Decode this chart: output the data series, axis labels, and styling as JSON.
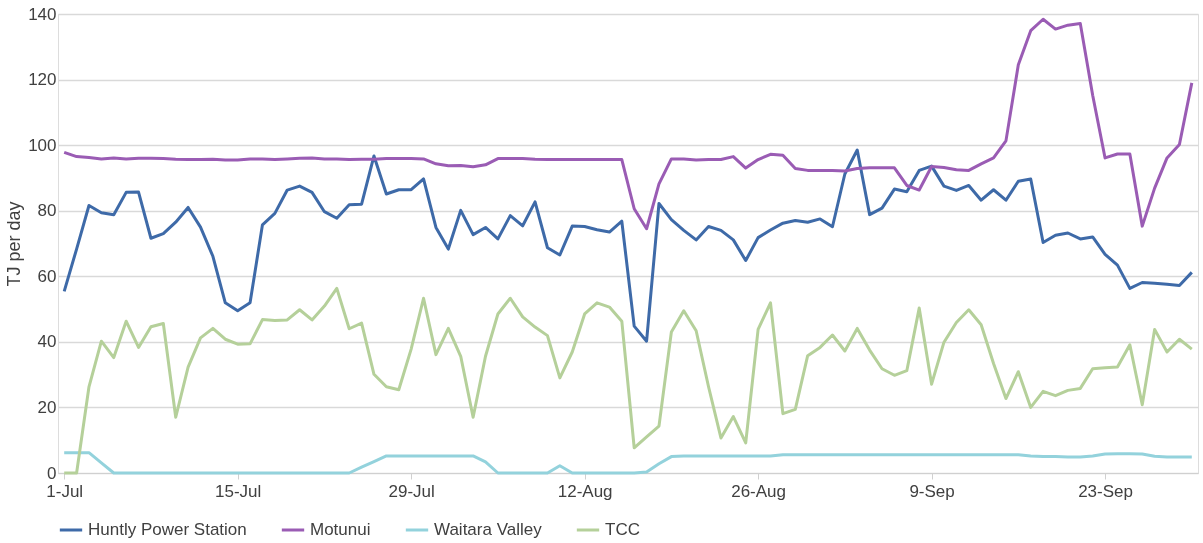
{
  "chart_data": {
    "type": "line",
    "ylabel": "TJ per day",
    "categories": [
      "1-Jul",
      null,
      null,
      null,
      null,
      null,
      null,
      null,
      null,
      null,
      null,
      null,
      null,
      null,
      "15-Jul",
      null,
      null,
      null,
      null,
      null,
      null,
      null,
      null,
      null,
      null,
      null,
      null,
      null,
      "29-Jul",
      null,
      null,
      null,
      null,
      null,
      null,
      null,
      null,
      null,
      null,
      null,
      null,
      null,
      "12-Aug",
      null,
      null,
      null,
      null,
      null,
      null,
      null,
      null,
      null,
      null,
      null,
      null,
      null,
      "26-Aug",
      null,
      null,
      null,
      null,
      null,
      null,
      null,
      null,
      null,
      null,
      null,
      null,
      null,
      "9-Sep",
      null,
      null,
      null,
      null,
      null,
      null,
      null,
      null,
      null,
      null,
      null,
      null,
      null,
      "23-Sep",
      null,
      null,
      null,
      null,
      null,
      null,
      null
    ],
    "series": [
      {
        "name": "Huntly Power Station",
        "color": "#3e6aa8",
        "values": [
          55.4,
          68.3,
          81.6,
          79.4,
          78.8,
          85.6,
          85.7,
          71.6,
          73,
          76.5,
          81,
          75,
          66.1,
          51.9,
          49.5,
          51.9,
          75.7,
          79.2,
          86.3,
          87.5,
          85.6,
          79.7,
          77.7,
          81.8,
          82,
          96.7,
          85.1,
          86.4,
          86.4,
          89.7,
          74.9,
          68.3,
          80.1,
          72.7,
          74.9,
          71.4,
          78.5,
          75.4,
          82.7,
          68.7,
          66.5,
          75.3,
          75.2,
          74.2,
          73.5,
          76.8,
          44.8,
          40.2,
          82.2,
          77.3,
          74,
          71.1,
          75.2,
          74,
          71.1,
          64.8,
          71.8,
          74.1,
          76.2,
          77,
          76.5,
          77.5,
          75.1,
          91.2,
          98.5,
          78.8,
          80.8,
          86.6,
          85.8,
          92.3,
          93.6,
          87.5,
          86.2,
          87.7,
          83.2,
          86.4,
          83.2,
          89,
          89.7,
          70.3,
          72.5,
          73.2,
          71.4,
          72,
          66.7,
          63.4,
          56.3,
          58.1,
          57.9,
          57.6,
          57.2,
          61.2
        ]
      },
      {
        "name": "Motunui",
        "color": "#9a5cb4",
        "values": [
          97.8,
          96.5,
          96.2,
          95.8,
          96.1,
          95.8,
          96,
          96,
          95.9,
          95.7,
          95.6,
          95.6,
          95.7,
          95.5,
          95.5,
          95.8,
          95.8,
          95.6,
          95.8,
          96,
          96.1,
          95.8,
          95.8,
          95.6,
          95.7,
          95.7,
          95.9,
          95.9,
          95.9,
          95.8,
          94.3,
          93.7,
          93.8,
          93.4,
          94,
          95.9,
          95.9,
          95.9,
          95.7,
          95.6,
          95.6,
          95.6,
          95.6,
          95.6,
          95.6,
          95.6,
          80.6,
          74.5,
          88.2,
          95.8,
          95.8,
          95.5,
          95.6,
          95.6,
          96.5,
          93,
          95.6,
          97.2,
          96.9,
          92.9,
          92.3,
          92.3,
          92.3,
          92.1,
          92.9,
          93.1,
          93.1,
          93.1,
          87.7,
          86.3,
          93.5,
          93.2,
          92.5,
          92.3,
          94.3,
          96.1,
          101.3,
          124.5,
          134.9,
          138.4,
          135.4,
          136.6,
          137.1,
          115.2,
          96.1,
          97.3,
          97.3,
          75.3,
          86.9,
          96.1,
          100.2,
          119
        ]
      },
      {
        "name": "Waitara Valley",
        "color": "#93d2dc",
        "values": [
          6.2,
          6.2,
          6.2,
          3.1,
          0,
          0,
          0,
          0,
          0,
          0,
          0,
          0,
          0,
          0,
          0,
          0,
          0,
          0,
          0,
          0,
          0,
          0,
          0,
          0,
          1.8,
          3.5,
          5.2,
          5.2,
          5.2,
          5.2,
          5.2,
          5.2,
          5.2,
          5.2,
          3.4,
          0,
          0,
          0,
          0,
          0,
          2.2,
          0,
          0,
          0,
          0,
          0,
          0,
          0.3,
          2.8,
          5,
          5.2,
          5.2,
          5.2,
          5.2,
          5.2,
          5.2,
          5.2,
          5.2,
          5.6,
          5.6,
          5.6,
          5.6,
          5.6,
          5.6,
          5.6,
          5.6,
          5.6,
          5.6,
          5.6,
          5.6,
          5.6,
          5.6,
          5.6,
          5.6,
          5.6,
          5.6,
          5.6,
          5.6,
          5.2,
          5,
          5,
          4.9,
          4.9,
          5.2,
          5.8,
          5.9,
          5.9,
          5.8,
          5.1,
          4.9,
          4.9,
          4.9
        ]
      },
      {
        "name": "TCC",
        "color": "#b5d09a",
        "values": [
          0,
          0,
          26.3,
          40.2,
          35.2,
          46.3,
          38.3,
          44.6,
          45.6,
          17,
          32.3,
          41.2,
          44.1,
          40.8,
          39.3,
          39.4,
          46.8,
          46.5,
          46.7,
          49.8,
          46.7,
          50.9,
          56.3,
          44,
          45.7,
          30.1,
          26.3,
          25.4,
          37.8,
          53.3,
          36.1,
          44.1,
          35.6,
          17,
          35.6,
          48.5,
          53.3,
          47.6,
          44.5,
          41.9,
          29,
          36.9,
          48.5,
          51.9,
          50.6,
          46.3,
          7.7,
          11,
          14.3,
          43,
          49.5,
          43.4,
          26.3,
          10.7,
          17.2,
          9.2,
          43.8,
          51.9,
          18.1,
          19.4,
          35.8,
          38.3,
          42.1,
          37.2,
          44.1,
          37.5,
          31.8,
          29.8,
          31.2,
          50.3,
          27.1,
          39.9,
          45.9,
          49.8,
          45.2,
          33.4,
          22.7,
          30.9,
          20,
          24.9,
          23.6,
          25.2,
          25.8,
          31.8,
          32.1,
          32.3,
          39.1,
          20.8,
          43.8,
          36.9,
          40.8,
          37.8
        ]
      }
    ],
    "ylim": [
      0,
      140
    ],
    "yticks": [
      0,
      20,
      40,
      60,
      80,
      100,
      120,
      140
    ],
    "grid": "y",
    "legend": "bottom",
    "marker": "none",
    "line_style": "solid"
  }
}
